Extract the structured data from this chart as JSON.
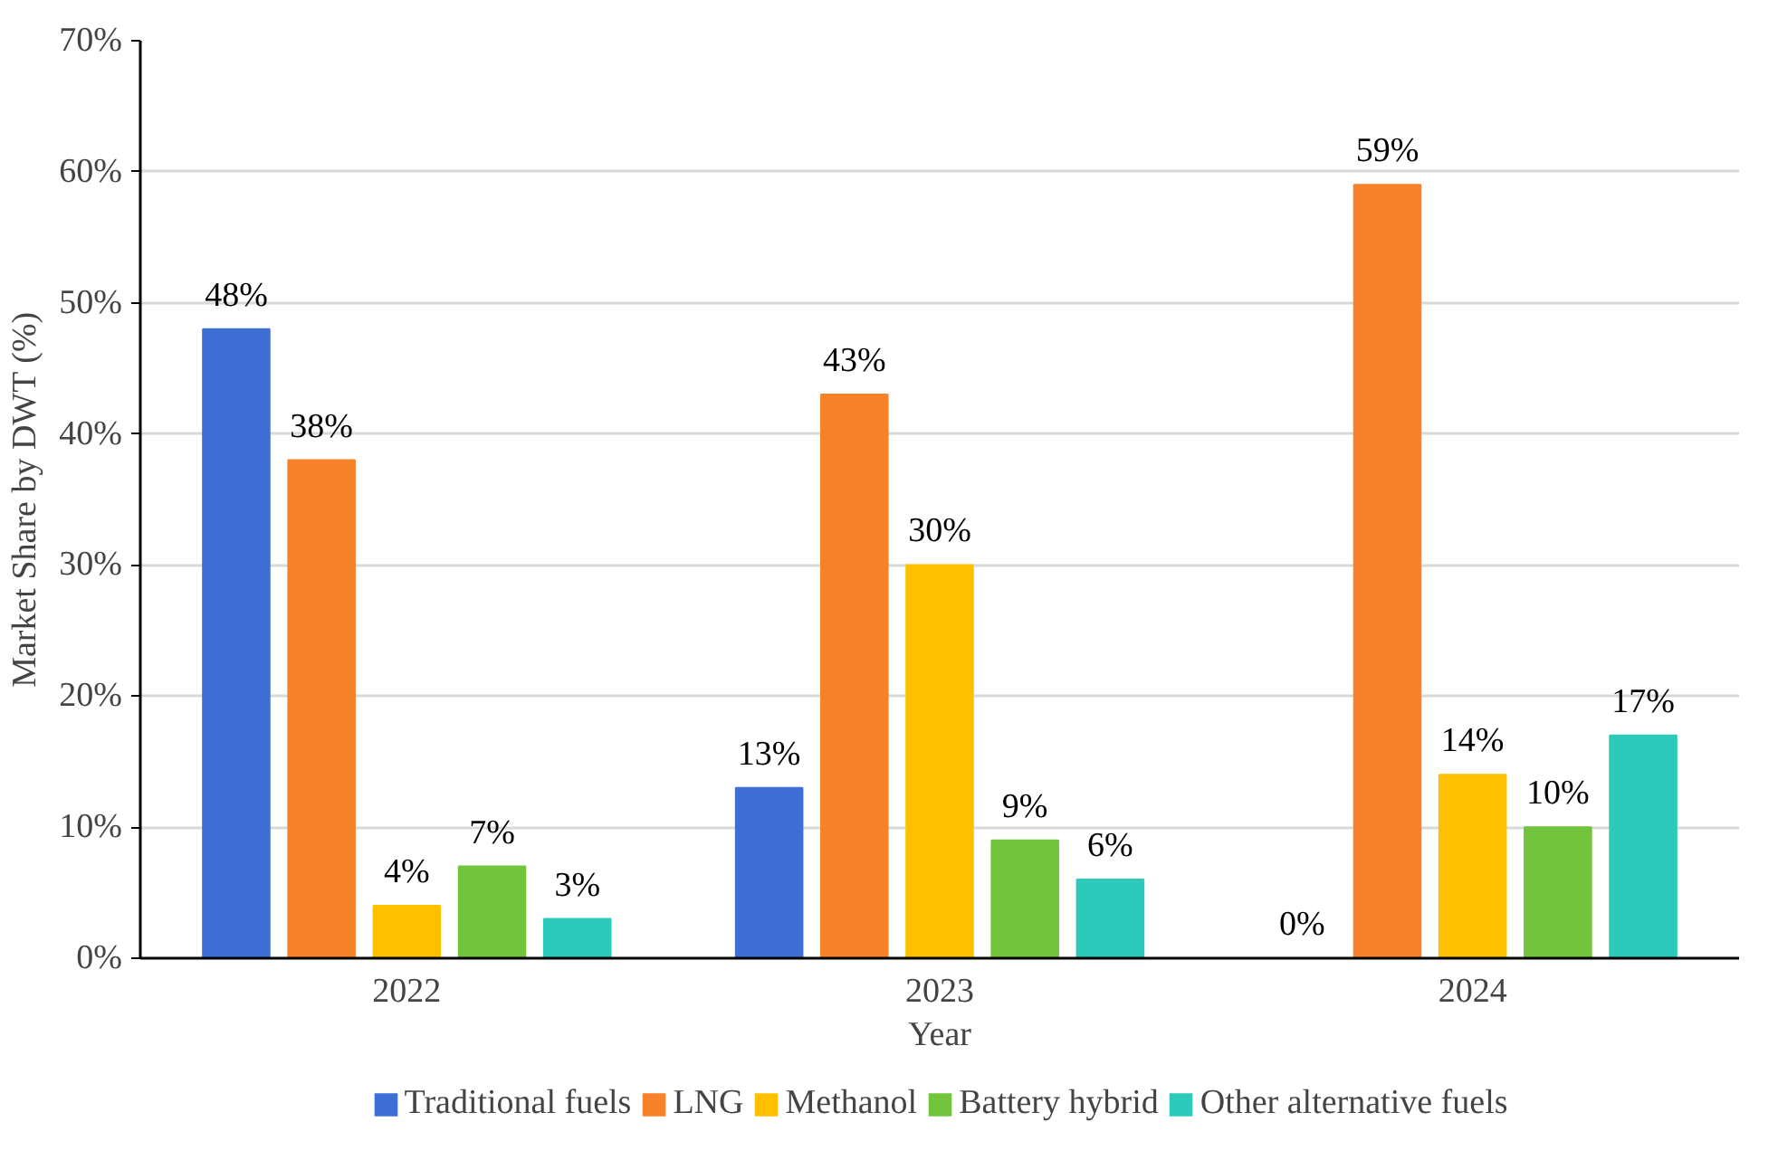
{
  "chart_data": {
    "type": "bar",
    "xlabel": "Year",
    "ylabel": "Market Share by DWT (%)",
    "categories": [
      "2022",
      "2023",
      "2024"
    ],
    "series": [
      {
        "name": "Traditional fuels",
        "color": "#3f6fd4",
        "values": [
          48,
          13,
          0
        ],
        "value_labels": [
          "48%",
          "13%",
          "0%"
        ]
      },
      {
        "name": "LNG",
        "color": "#f7822a",
        "values": [
          38,
          43,
          59
        ],
        "value_labels": [
          "38%",
          "43%",
          "59%"
        ]
      },
      {
        "name": "Methanol",
        "color": "#ffc000",
        "values": [
          4,
          30,
          14
        ],
        "value_labels": [
          "4%",
          "30%",
          "14%"
        ]
      },
      {
        "name": "Battery hybrid",
        "color": "#72c43c",
        "values": [
          7,
          9,
          10
        ],
        "value_labels": [
          "7%",
          "9%",
          "10%"
        ]
      },
      {
        "name": "Other alternative fuels",
        "color": "#2ccabb",
        "values": [
          3,
          6,
          17
        ],
        "value_labels": [
          "3%",
          "6%",
          "17%"
        ]
      }
    ],
    "ylim": [
      0,
      70
    ],
    "yticks": [
      {
        "value": 0,
        "label": "0%"
      },
      {
        "value": 10,
        "label": "10%"
      },
      {
        "value": 20,
        "label": "20%"
      },
      {
        "value": 30,
        "label": "30%"
      },
      {
        "value": 40,
        "label": "40%"
      },
      {
        "value": 50,
        "label": "50%"
      },
      {
        "value": 60,
        "label": "60%"
      },
      {
        "value": 70,
        "label": "70%"
      }
    ],
    "grid": "y",
    "legend": "bottom"
  }
}
